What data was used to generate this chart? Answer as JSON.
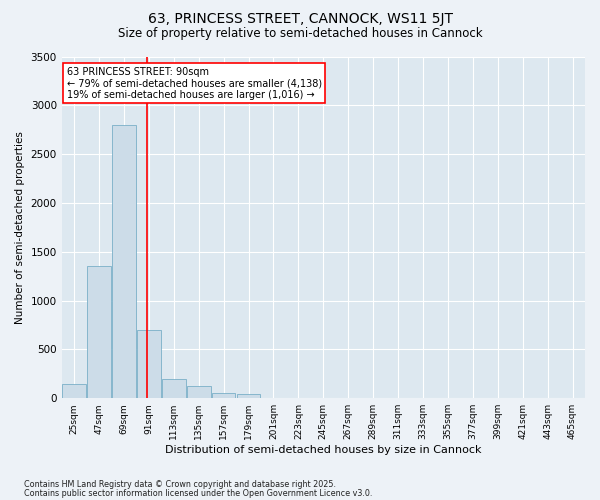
{
  "title1": "63, PRINCESS STREET, CANNOCK, WS11 5JT",
  "title2": "Size of property relative to semi-detached houses in Cannock",
  "xlabel": "Distribution of semi-detached houses by size in Cannock",
  "ylabel": "Number of semi-detached properties",
  "bin_labels": [
    "25sqm",
    "47sqm",
    "69sqm",
    "91sqm",
    "113sqm",
    "135sqm",
    "157sqm",
    "179sqm",
    "201sqm",
    "223sqm",
    "245sqm",
    "267sqm",
    "289sqm",
    "311sqm",
    "333sqm",
    "355sqm",
    "377sqm",
    "399sqm",
    "421sqm",
    "443sqm",
    "465sqm"
  ],
  "bar_values": [
    150,
    1350,
    2800,
    700,
    200,
    120,
    50,
    40,
    5,
    0,
    0,
    0,
    0,
    0,
    0,
    0,
    0,
    0,
    0,
    0,
    0
  ],
  "bar_color": "#ccdce8",
  "bar_edgecolor": "#7aafc8",
  "property_line_x": 2.93,
  "annotation_text": "63 PRINCESS STREET: 90sqm\n← 79% of semi-detached houses are smaller (4,138)\n19% of semi-detached houses are larger (1,016) →",
  "ylim": [
    0,
    3500
  ],
  "yticks": [
    0,
    500,
    1000,
    1500,
    2000,
    2500,
    3000,
    3500
  ],
  "footer1": "Contains HM Land Registry data © Crown copyright and database right 2025.",
  "footer2": "Contains public sector information licensed under the Open Government Licence v3.0.",
  "bg_color": "#edf2f7",
  "plot_bg_color": "#dde8f0"
}
